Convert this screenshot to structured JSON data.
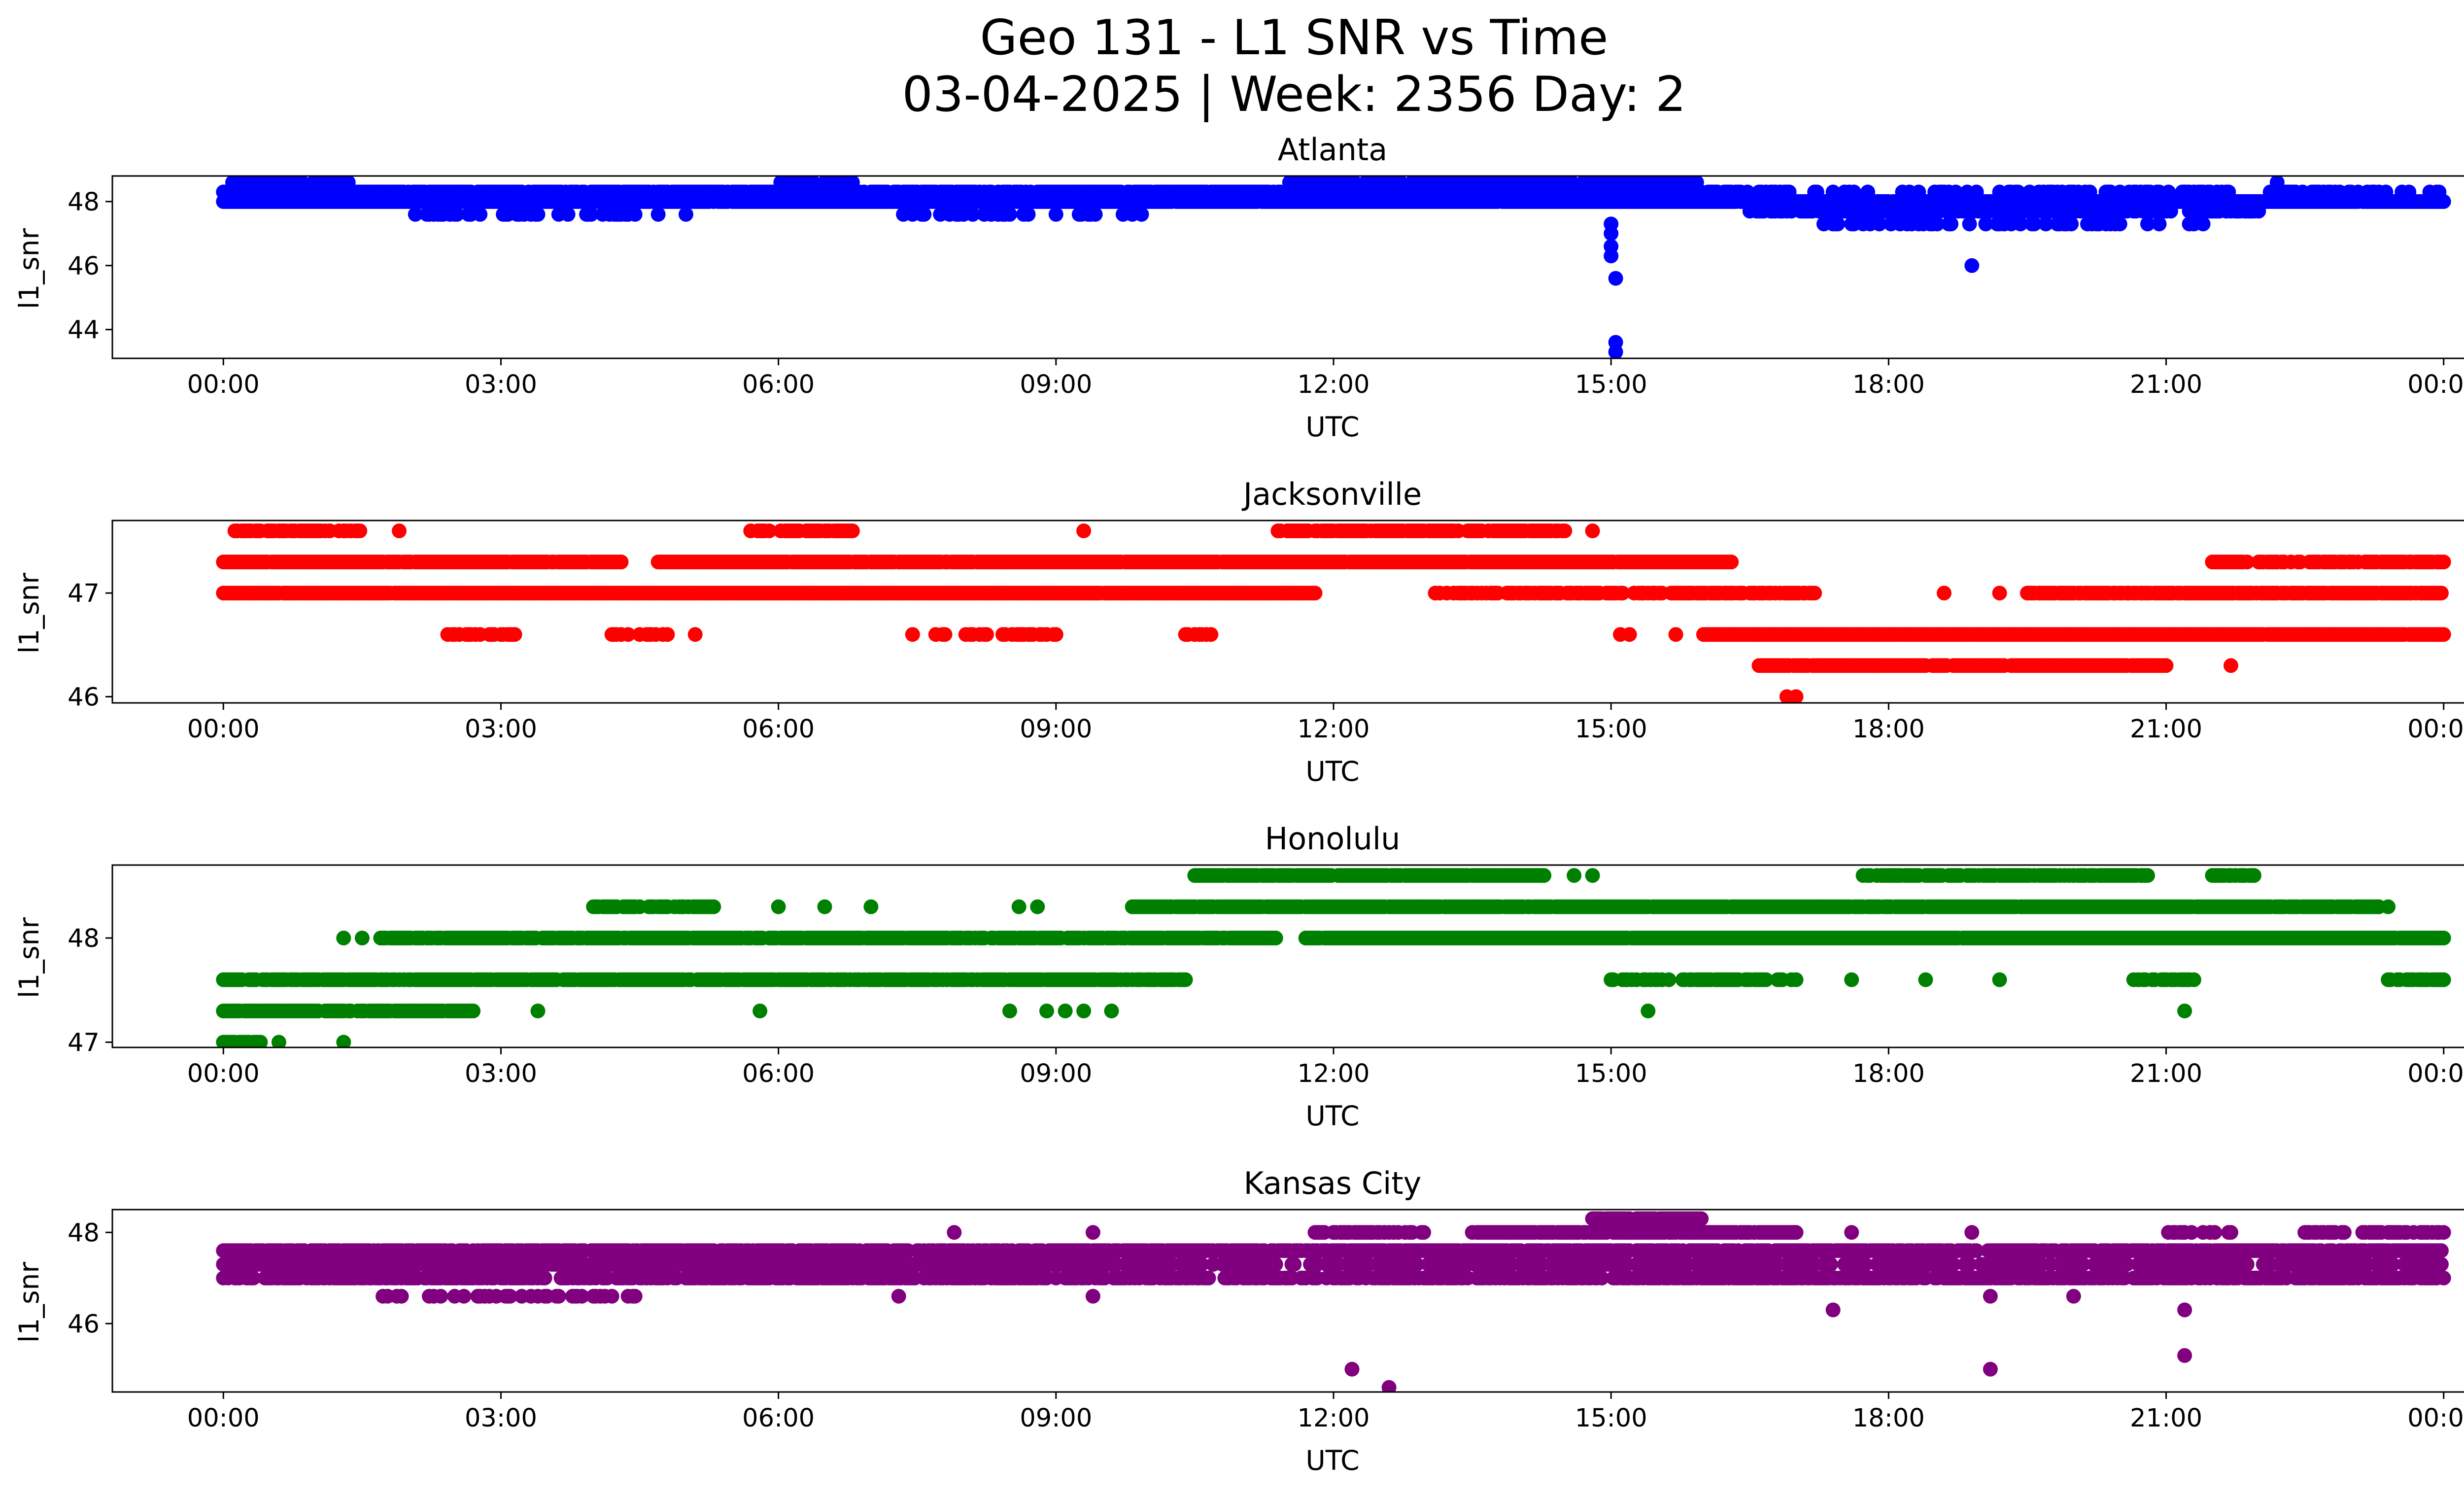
{
  "chart_data": {
    "type": "scatter",
    "title": "Geo 131 - L1 SNR vs Time",
    "subtitle": "03-04-2025 | Week: 2356 Day: 2",
    "x_tick_labels": [
      "00:00",
      "03:00",
      "06:00",
      "09:00",
      "12:00",
      "15:00",
      "18:00",
      "21:00",
      "00:00"
    ],
    "x_range_hours": [
      -1.2,
      25.2
    ],
    "panels": [
      {
        "name": "Atlanta",
        "color": "#0000ff",
        "xlabel": "UTC",
        "ylabel": "l1_snr",
        "ylim": [
          43.1,
          48.8
        ],
        "y_ticks": [
          44,
          46,
          48
        ],
        "y_tick_labels": [
          "44",
          "46",
          "48"
        ],
        "bands": [
          {
            "y": 48.0,
            "start": 0.0,
            "end": 24.0,
            "density": 0.99
          },
          {
            "y": 48.3,
            "start": 0.0,
            "end": 16.3,
            "density": 0.85
          },
          {
            "y": 48.3,
            "start": 16.3,
            "end": 24.0,
            "density": 0.35
          },
          {
            "y": 48.6,
            "start": 0.1,
            "end": 1.5,
            "density": 0.5
          },
          {
            "y": 48.6,
            "start": 6.0,
            "end": 6.8,
            "density": 0.6
          },
          {
            "y": 48.6,
            "start": 11.5,
            "end": 16.0,
            "density": 0.6
          },
          {
            "y": 47.6,
            "start": 2.0,
            "end": 5.0,
            "density": 0.3
          },
          {
            "y": 47.6,
            "start": 7.3,
            "end": 10.0,
            "density": 0.25
          },
          {
            "y": 47.7,
            "start": 16.5,
            "end": 22.0,
            "density": 0.6
          },
          {
            "y": 47.3,
            "start": 17.3,
            "end": 21.5,
            "density": 0.3
          }
        ],
        "points": [
          {
            "x": 15.0,
            "y": 47.3
          },
          {
            "x": 15.0,
            "y": 47.0
          },
          {
            "x": 15.0,
            "y": 46.6
          },
          {
            "x": 15.0,
            "y": 46.3
          },
          {
            "x": 15.05,
            "y": 45.6
          },
          {
            "x": 15.05,
            "y": 43.6
          },
          {
            "x": 15.05,
            "y": 43.3
          },
          {
            "x": 18.9,
            "y": 46.0
          },
          {
            "x": 22.2,
            "y": 48.6
          }
        ]
      },
      {
        "name": "Jacksonville",
        "color": "#ff0000",
        "xlabel": "UTC",
        "ylabel": "l1_snr",
        "ylim": [
          45.94,
          47.7
        ],
        "y_ticks": [
          46,
          47
        ],
        "y_tick_labels": [
          "46",
          "47"
        ],
        "bands": [
          {
            "y": 47.0,
            "start": 0.0,
            "end": 11.8,
            "density": 0.99
          },
          {
            "y": 47.0,
            "start": 13.1,
            "end": 17.2,
            "density": 0.7
          },
          {
            "y": 47.0,
            "start": 19.5,
            "end": 24.0,
            "density": 0.85
          },
          {
            "y": 47.3,
            "start": 0.0,
            "end": 4.3,
            "density": 0.95
          },
          {
            "y": 47.3,
            "start": 4.7,
            "end": 16.3,
            "density": 0.98
          },
          {
            "y": 47.3,
            "start": 21.5,
            "end": 24.0,
            "density": 0.7
          },
          {
            "y": 47.6,
            "start": 0.1,
            "end": 1.5,
            "density": 0.6
          },
          {
            "y": 47.6,
            "start": 5.7,
            "end": 6.8,
            "density": 0.8
          },
          {
            "y": 47.6,
            "start": 11.4,
            "end": 14.5,
            "density": 0.85
          },
          {
            "y": 46.6,
            "start": 2.4,
            "end": 3.2,
            "density": 0.5
          },
          {
            "y": 46.6,
            "start": 4.2,
            "end": 4.8,
            "density": 0.5
          },
          {
            "y": 46.6,
            "start": 7.4,
            "end": 9.0,
            "density": 0.45
          },
          {
            "y": 46.6,
            "start": 10.4,
            "end": 10.7,
            "density": 0.5
          },
          {
            "y": 46.6,
            "start": 16.0,
            "end": 24.0,
            "density": 0.99
          },
          {
            "y": 46.3,
            "start": 16.6,
            "end": 21.0,
            "density": 0.95
          }
        ],
        "points": [
          {
            "x": 9.3,
            "y": 47.6
          },
          {
            "x": 14.8,
            "y": 47.6
          },
          {
            "x": 1.9,
            "y": 47.6
          },
          {
            "x": 5.1,
            "y": 46.6
          },
          {
            "x": 15.1,
            "y": 46.6
          },
          {
            "x": 15.2,
            "y": 46.6
          },
          {
            "x": 15.7,
            "y": 46.6
          },
          {
            "x": 21.7,
            "y": 46.3
          },
          {
            "x": 16.9,
            "y": 46.0
          },
          {
            "x": 17.0,
            "y": 46.0
          },
          {
            "x": 18.6,
            "y": 47.0
          },
          {
            "x": 19.2,
            "y": 47.0
          }
        ]
      },
      {
        "name": "Honolulu",
        "color": "#008000",
        "xlabel": "UTC",
        "ylabel": "l1_snr",
        "ylim": [
          46.95,
          48.7
        ],
        "y_ticks": [
          47,
          48
        ],
        "y_tick_labels": [
          "47",
          "48"
        ],
        "bands": [
          {
            "y": 48.0,
            "start": 1.7,
            "end": 11.4,
            "density": 0.9
          },
          {
            "y": 48.0,
            "start": 11.7,
            "end": 24.0,
            "density": 0.99
          },
          {
            "y": 48.3,
            "start": 4.0,
            "end": 5.3,
            "density": 0.8
          },
          {
            "y": 48.3,
            "start": 9.8,
            "end": 23.3,
            "density": 0.95
          },
          {
            "y": 48.6,
            "start": 10.5,
            "end": 14.3,
            "density": 0.9
          },
          {
            "y": 48.6,
            "start": 17.7,
            "end": 20.8,
            "density": 0.8
          },
          {
            "y": 48.6,
            "start": 21.5,
            "end": 22.0,
            "density": 0.7
          },
          {
            "y": 47.6,
            "start": 0.0,
            "end": 10.4,
            "density": 0.9
          },
          {
            "y": 47.6,
            "start": 15.0,
            "end": 17.0,
            "density": 0.6
          },
          {
            "y": 47.6,
            "start": 20.6,
            "end": 21.3,
            "density": 0.6
          },
          {
            "y": 47.6,
            "start": 23.4,
            "end": 24.0,
            "density": 0.8
          },
          {
            "y": 47.3,
            "start": 0.0,
            "end": 2.7,
            "density": 0.9
          },
          {
            "y": 47.0,
            "start": 0.0,
            "end": 0.4,
            "density": 0.8
          }
        ],
        "points": [
          {
            "x": 1.3,
            "y": 48.0
          },
          {
            "x": 1.5,
            "y": 48.0
          },
          {
            "x": 3.4,
            "y": 47.3
          },
          {
            "x": 5.8,
            "y": 47.3
          },
          {
            "x": 8.5,
            "y": 47.3
          },
          {
            "x": 8.9,
            "y": 47.3
          },
          {
            "x": 9.1,
            "y": 47.3
          },
          {
            "x": 9.3,
            "y": 47.3
          },
          {
            "x": 9.6,
            "y": 47.3
          },
          {
            "x": 15.4,
            "y": 47.3
          },
          {
            "x": 21.2,
            "y": 47.3
          },
          {
            "x": 1.3,
            "y": 47.0
          },
          {
            "x": 0.6,
            "y": 47.0
          },
          {
            "x": 14.6,
            "y": 48.6
          },
          {
            "x": 14.8,
            "y": 48.6
          },
          {
            "x": 17.6,
            "y": 47.6
          },
          {
            "x": 18.4,
            "y": 47.6
          },
          {
            "x": 19.2,
            "y": 47.6
          },
          {
            "x": 23.4,
            "y": 48.3
          },
          {
            "x": 6.0,
            "y": 48.3
          },
          {
            "x": 6.5,
            "y": 48.3
          },
          {
            "x": 7.0,
            "y": 48.3
          },
          {
            "x": 8.6,
            "y": 48.3
          },
          {
            "x": 8.8,
            "y": 48.3
          }
        ]
      },
      {
        "name": "Kansas City",
        "color": "#800080",
        "xlabel": "UTC",
        "ylabel": "l1_snr",
        "ylim": [
          44.5,
          48.5
        ],
        "y_ticks": [
          46,
          48
        ],
        "y_tick_labels": [
          "46",
          "48"
        ],
        "bands": [
          {
            "y": 47.0,
            "start": 0.0,
            "end": 24.0,
            "density": 0.7
          },
          {
            "y": 47.3,
            "start": 0.0,
            "end": 7.5,
            "density": 0.85
          },
          {
            "y": 47.3,
            "start": 7.5,
            "end": 24.0,
            "density": 0.6
          },
          {
            "y": 47.6,
            "start": 0.0,
            "end": 24.0,
            "density": 0.85
          },
          {
            "y": 48.0,
            "start": 11.8,
            "end": 13.0,
            "density": 0.6
          },
          {
            "y": 48.0,
            "start": 13.5,
            "end": 17.0,
            "density": 0.9
          },
          {
            "y": 48.0,
            "start": 21.0,
            "end": 21.7,
            "density": 0.5
          },
          {
            "y": 48.0,
            "start": 22.5,
            "end": 24.0,
            "density": 0.7
          },
          {
            "y": 48.3,
            "start": 14.8,
            "end": 16.0,
            "density": 0.9
          },
          {
            "y": 46.6,
            "start": 1.7,
            "end": 4.6,
            "density": 0.3
          }
        ],
        "points": [
          {
            "x": 7.3,
            "y": 46.6
          },
          {
            "x": 9.4,
            "y": 46.6
          },
          {
            "x": 7.9,
            "y": 48.0
          },
          {
            "x": 9.4,
            "y": 48.0
          },
          {
            "x": 12.2,
            "y": 45.0
          },
          {
            "x": 12.6,
            "y": 44.6
          },
          {
            "x": 17.4,
            "y": 46.3
          },
          {
            "x": 19.1,
            "y": 46.6
          },
          {
            "x": 19.1,
            "y": 45.0
          },
          {
            "x": 20.0,
            "y": 46.6
          },
          {
            "x": 21.2,
            "y": 46.3
          },
          {
            "x": 21.2,
            "y": 45.3
          },
          {
            "x": 18.9,
            "y": 48.0
          },
          {
            "x": 17.6,
            "y": 48.0
          }
        ]
      }
    ]
  }
}
